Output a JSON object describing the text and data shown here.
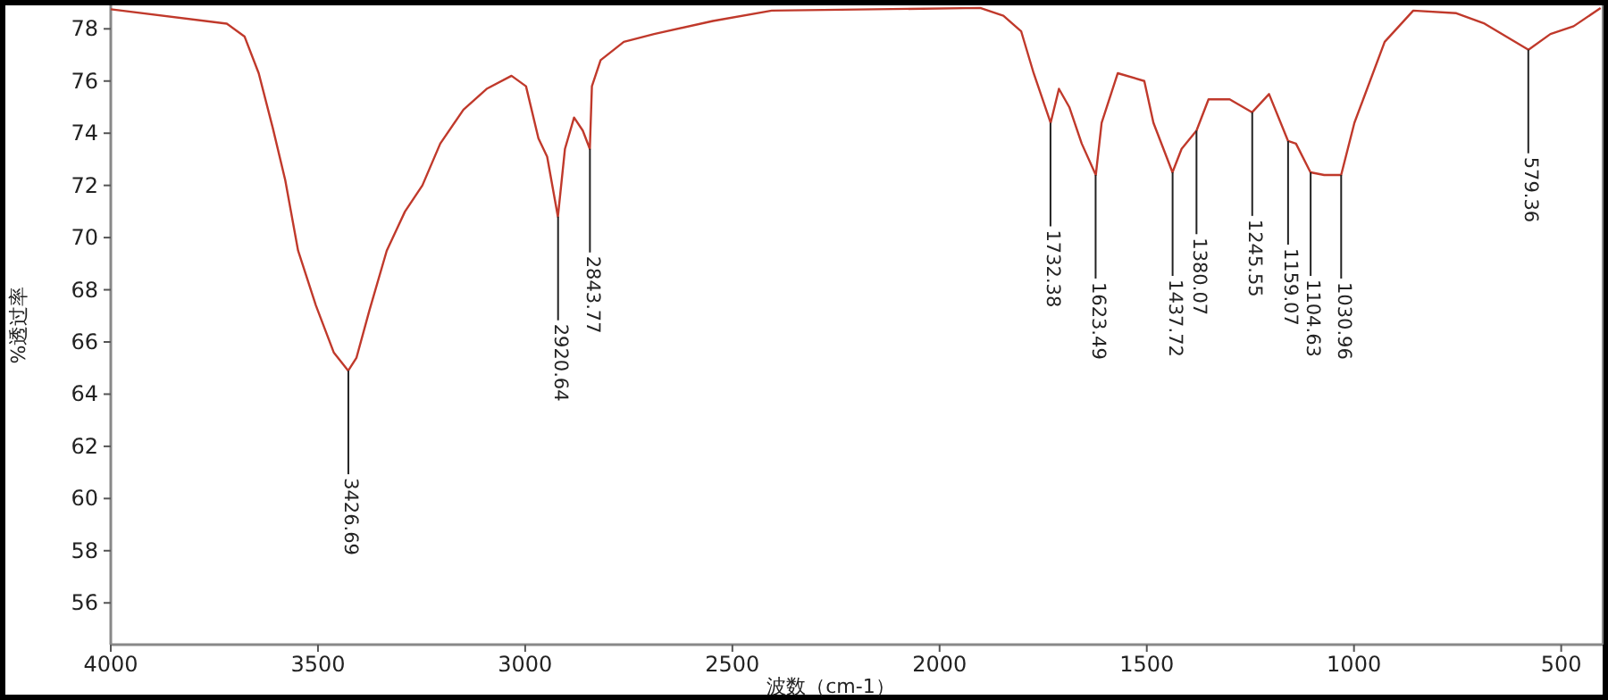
{
  "chart_data": {
    "type": "line",
    "xlabel": "波数（cm-1）",
    "ylabel": "%透过率",
    "xlim": [
      4000,
      400
    ],
    "ylim": [
      54.4,
      78.9
    ],
    "xticks": [
      4000,
      3500,
      3000,
      2500,
      2000,
      1500,
      1000,
      500
    ],
    "yticks": [
      56,
      58,
      60,
      62,
      64,
      66,
      68,
      70,
      72,
      74,
      76,
      78
    ],
    "grid": false,
    "marker": "none",
    "line_style": "solid",
    "series": [
      {
        "color": "#c0392b",
        "x": [
          4000,
          3720,
          3677,
          3643,
          3609,
          3579,
          3548,
          3505,
          3462,
          3427,
          3407,
          3376,
          3334,
          3290,
          3248,
          3205,
          3149,
          3093,
          3033,
          2998,
          2968,
          2947,
          2921,
          2904,
          2882,
          2861,
          2844,
          2839,
          2818,
          2762,
          2689,
          2547,
          2405,
          1902,
          1846,
          1803,
          1773,
          1732,
          1712,
          1687,
          1657,
          1623,
          1609,
          1570,
          1506,
          1484,
          1438,
          1416,
          1380,
          1351,
          1300,
          1246,
          1205,
          1159,
          1140,
          1105,
          1072,
          1031,
          999,
          926,
          857,
          753,
          685,
          579,
          526,
          470,
          405
        ],
        "values": [
          78.75,
          78.2,
          77.7,
          76.3,
          74.2,
          72.2,
          69.5,
          67.4,
          65.6,
          64.9,
          65.4,
          67.2,
          69.5,
          71.0,
          72.0,
          73.6,
          74.9,
          75.7,
          76.2,
          75.8,
          73.8,
          73.1,
          70.8,
          73.4,
          74.6,
          74.1,
          73.4,
          75.8,
          76.8,
          77.5,
          77.8,
          78.3,
          78.7,
          78.8,
          78.5,
          77.9,
          76.3,
          74.4,
          75.7,
          75.0,
          73.6,
          72.4,
          74.4,
          76.3,
          76.0,
          74.4,
          72.5,
          73.4,
          74.1,
          75.3,
          75.3,
          74.8,
          75.5,
          73.7,
          73.6,
          72.5,
          72.4,
          72.4,
          74.4,
          77.5,
          78.7,
          78.6,
          78.2,
          77.2,
          77.8,
          78.1,
          78.8
        ]
      }
    ],
    "annotations": [
      {
        "text": "3426.69",
        "x": 3426.69,
        "y": 64.9
      },
      {
        "text": "2920.64",
        "x": 2920.64,
        "y": 70.8
      },
      {
        "text": "2843.77",
        "x": 2843.77,
        "y": 73.4
      },
      {
        "text": "1732.38",
        "x": 1732.38,
        "y": 74.4
      },
      {
        "text": "1623.49",
        "x": 1623.49,
        "y": 72.4
      },
      {
        "text": "1437.72",
        "x": 1437.72,
        "y": 72.5
      },
      {
        "text": "1380.07",
        "x": 1380.07,
        "y": 74.1
      },
      {
        "text": "1245.55",
        "x": 1245.55,
        "y": 74.8
      },
      {
        "text": "1159.07",
        "x": 1159.07,
        "y": 73.7
      },
      {
        "text": "1104.63",
        "x": 1104.63,
        "y": 72.5
      },
      {
        "text": "1030.96",
        "x": 1030.96,
        "y": 72.4
      },
      {
        "text": "579.36",
        "x": 579.36,
        "y": 77.2
      }
    ]
  }
}
